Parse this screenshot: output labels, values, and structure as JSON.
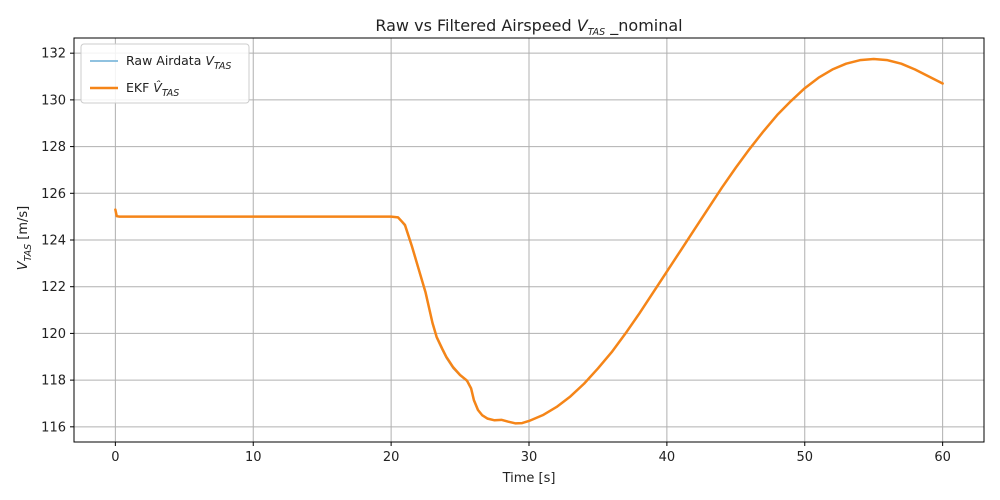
{
  "colors": {
    "raw": "#6baed6",
    "ekf": "#f58518",
    "grid": "#b0b0b0",
    "axis": "#000000"
  },
  "chart_data": {
    "type": "line",
    "title_prefix": "Raw vs Filtered Airspeed",
    "title_var": "V",
    "title_sub": "TAS",
    "title_suffix": "_nominal",
    "xlabel": "Time [s]",
    "ylabel_var": "V",
    "ylabel_sub": "TAS",
    "ylabel_unit": "[m/s]",
    "xlim": [
      -3,
      63
    ],
    "ylim": [
      115.35,
      132.65
    ],
    "xticks": [
      0,
      10,
      20,
      30,
      40,
      50,
      60
    ],
    "yticks": [
      116,
      118,
      120,
      122,
      124,
      126,
      128,
      130,
      132
    ],
    "grid": true,
    "legend_position": "top-left",
    "series": [
      {
        "name": "Raw Airdata V_TAS",
        "legend_prefix": "Raw Airdata",
        "legend_var": "V",
        "legend_sub": "TAS",
        "color_key": "raw",
        "x": [
          0,
          0.1,
          0.3,
          1,
          5,
          10,
          15,
          19,
          20,
          20.5,
          21,
          21.5,
          22,
          22.5,
          23,
          23.3,
          23.7,
          24,
          24.5,
          25,
          25.5,
          25.8,
          26,
          26.3,
          26.6,
          27,
          27.5,
          28,
          28.5,
          29,
          29.5,
          30,
          31,
          32,
          33,
          34,
          35,
          36,
          37,
          38,
          39,
          40,
          41,
          42,
          43,
          44,
          45,
          46,
          47,
          48,
          49,
          50,
          51,
          52,
          53,
          54,
          55,
          56,
          57,
          58,
          59,
          60
        ],
        "y": [
          125.3,
          125.02,
          125.0,
          125.0,
          125.0,
          125.0,
          125.0,
          125.0,
          125.0,
          124.98,
          124.6,
          123.7,
          122.7,
          121.7,
          120.4,
          119.8,
          119.3,
          118.95,
          118.5,
          118.2,
          117.95,
          117.6,
          117.1,
          116.7,
          116.5,
          116.35,
          116.28,
          116.3,
          116.22,
          116.15,
          116.16,
          116.25,
          116.5,
          116.85,
          117.3,
          117.85,
          118.5,
          119.2,
          120.0,
          120.85,
          121.75,
          122.65,
          123.55,
          124.45,
          125.35,
          126.25,
          127.1,
          127.9,
          128.65,
          129.35,
          129.95,
          130.5,
          130.95,
          131.3,
          131.55,
          131.7,
          131.75,
          131.7,
          131.55,
          131.3,
          131.0,
          130.7
        ]
      },
      {
        "name": "EKF V̂_TAS",
        "legend_prefix": "EKF",
        "legend_var": "V̂",
        "legend_sub": "TAS",
        "color_key": "ekf",
        "x": [
          0,
          0.1,
          0.3,
          1,
          5,
          10,
          15,
          19,
          20,
          20.5,
          21,
          21.5,
          22,
          22.5,
          23,
          23.3,
          23.7,
          24,
          24.5,
          25,
          25.5,
          25.8,
          26,
          26.3,
          26.6,
          27,
          27.5,
          28,
          28.5,
          29,
          29.5,
          30,
          31,
          32,
          33,
          34,
          35,
          36,
          37,
          38,
          39,
          40,
          41,
          42,
          43,
          44,
          45,
          46,
          47,
          48,
          49,
          50,
          51,
          52,
          53,
          54,
          55,
          56,
          57,
          58,
          59,
          60
        ],
        "y": [
          125.3,
          125.02,
          125.0,
          125.0,
          125.0,
          125.0,
          125.0,
          125.0,
          125.0,
          124.97,
          124.65,
          123.75,
          122.75,
          121.75,
          120.45,
          119.85,
          119.35,
          119.0,
          118.55,
          118.22,
          117.98,
          117.65,
          117.15,
          116.72,
          116.5,
          116.35,
          116.28,
          116.3,
          116.22,
          116.15,
          116.16,
          116.25,
          116.5,
          116.85,
          117.3,
          117.85,
          118.5,
          119.2,
          120.0,
          120.85,
          121.75,
          122.65,
          123.55,
          124.45,
          125.35,
          126.25,
          127.1,
          127.9,
          128.65,
          129.35,
          129.95,
          130.5,
          130.95,
          131.3,
          131.55,
          131.7,
          131.75,
          131.7,
          131.55,
          131.3,
          131.0,
          130.7
        ]
      }
    ]
  }
}
